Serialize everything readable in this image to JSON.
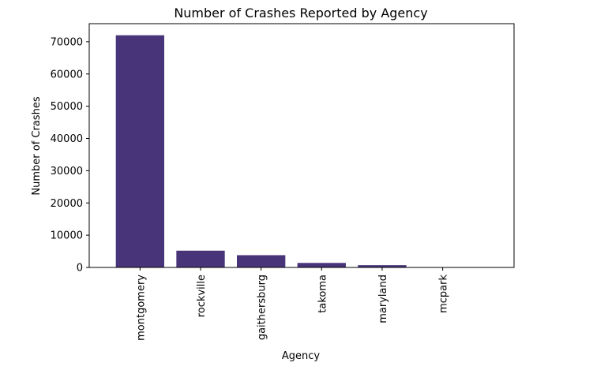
{
  "chart_data": {
    "type": "bar",
    "title": "Number of Crashes Reported by Agency",
    "xlabel": "Agency",
    "ylabel": "Number of Crashes",
    "categories": [
      "montgomery",
      "rockville",
      "gaithersburg",
      "takoma",
      "maryland",
      "mcpark"
    ],
    "values": [
      72000,
      5200,
      3800,
      1400,
      700,
      50
    ],
    "ylim": [
      0,
      75600
    ],
    "yticks": [
      0,
      10000,
      20000,
      30000,
      40000,
      50000,
      60000,
      70000
    ],
    "grid": false,
    "legend": "none",
    "bar_color": "#483479"
  }
}
